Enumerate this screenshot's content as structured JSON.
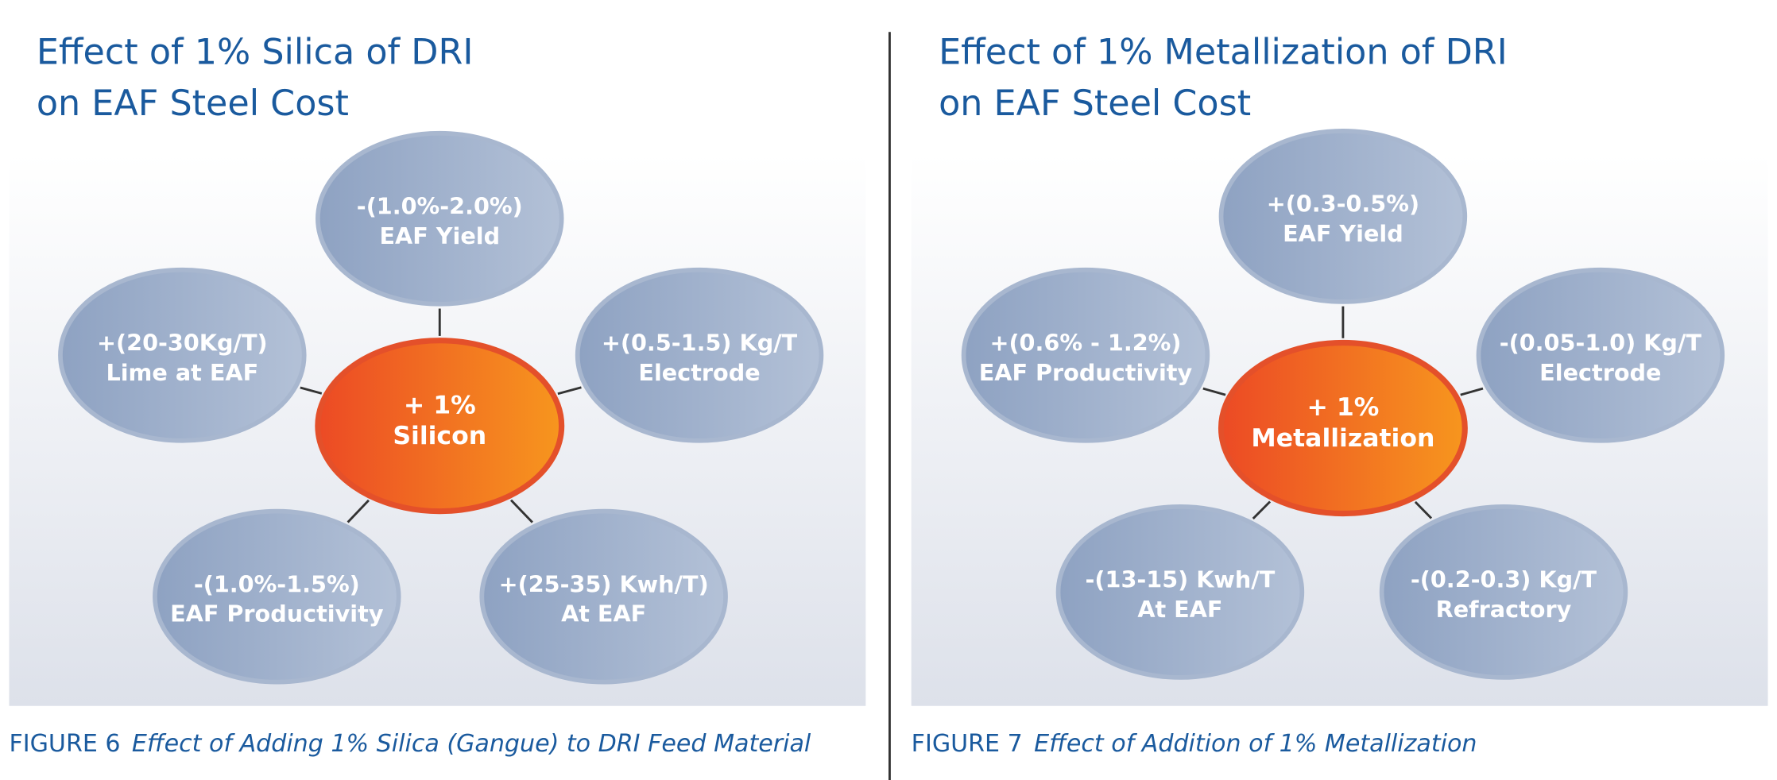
{
  "figures": [
    {
      "title": [
        "Effect of 1% Silica of DRI",
        "on EAF Steel Cost"
      ],
      "center": [
        "+ 1%",
        "Silicon"
      ],
      "nodes": [
        {
          "lines": [
            "-(1.0%-2.0%)",
            "EAF Yield"
          ]
        },
        {
          "lines": [
            "+(20-30Kg/T)",
            "Lime at EAF"
          ]
        },
        {
          "lines": [
            "+(0.5-1.5) Kg/T",
            "Electrode"
          ]
        },
        {
          "lines": [
            "-(1.0%-1.5%)",
            "EAF Productivity"
          ]
        },
        {
          "lines": [
            "+(25-35) Kwh/T)",
            "At EAF"
          ]
        }
      ],
      "caption": {
        "label": "FIGURE 6",
        "text": "Effect of Adding 1% Silica (Gangue) to DRI Feed Material"
      }
    },
    {
      "title": [
        "Effect of 1% Metallization of DRI",
        "on EAF Steel Cost"
      ],
      "center": [
        "+ 1%",
        "Metallization"
      ],
      "nodes": [
        {
          "lines": [
            "+(0.3-0.5%)",
            "EAF Yield"
          ]
        },
        {
          "lines": [
            "+(0.6% - 1.2%)",
            "EAF Productivity"
          ]
        },
        {
          "lines": [
            "-(0.05-1.0) Kg/T",
            "Electrode"
          ]
        },
        {
          "lines": [
            "-(13-15) Kwh/T",
            "At EAF"
          ]
        },
        {
          "lines": [
            "-(0.2-0.3) Kg/T",
            "Refractory"
          ]
        }
      ],
      "caption": {
        "label": "FIGURE 7",
        "text": "Effect of Addition of 1% Metallization"
      }
    }
  ]
}
